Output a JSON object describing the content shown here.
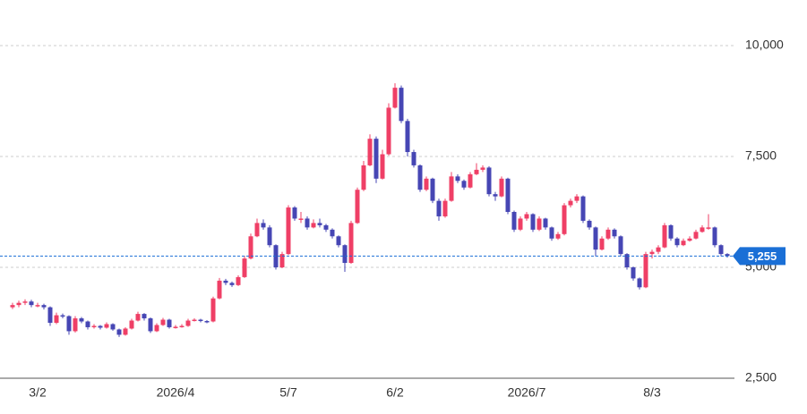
{
  "chart_data": {
    "type": "candlestick",
    "categories": [
      null,
      null,
      null,
      null,
      "3/2",
      null,
      null,
      null,
      null,
      null,
      null,
      null,
      null,
      null,
      null,
      null,
      null,
      null,
      null,
      null,
      null,
      null,
      null,
      null,
      null,
      null,
      "2026/4",
      null,
      null,
      null,
      null,
      null,
      null,
      null,
      null,
      null,
      null,
      null,
      null,
      null,
      null,
      null,
      null,
      null,
      "5/7",
      null,
      null,
      null,
      null,
      null,
      null,
      null,
      null,
      null,
      null,
      null,
      null,
      null,
      null,
      null,
      null,
      "6/2",
      null,
      null,
      null,
      null,
      null,
      null,
      null,
      null,
      null,
      null,
      null,
      null,
      null,
      null,
      null,
      null,
      null,
      null,
      null,
      null,
      "2026/7",
      null,
      null,
      null,
      null,
      null,
      null,
      null,
      null,
      null,
      null,
      null,
      null,
      null,
      null,
      null,
      null,
      null,
      null,
      null,
      "8/3",
      null,
      null,
      null,
      null,
      null,
      null,
      null,
      null,
      null,
      null,
      null,
      null
    ],
    "open": [
      4100,
      4150,
      4200,
      4230,
      4150,
      4150,
      4100,
      3750,
      3920,
      3900,
      3560,
      3850,
      3780,
      3650,
      3680,
      3640,
      3720,
      3600,
      3480,
      3620,
      3800,
      3950,
      3850,
      3560,
      3700,
      3820,
      3650,
      3660,
      3680,
      3800,
      3820,
      3790,
      3780,
      4300,
      4700,
      4650,
      4600,
      4780,
      5200,
      5700,
      6000,
      5900,
      5500,
      5000,
      5300,
      6350,
      6100,
      6100,
      5900,
      6000,
      5950,
      5850,
      5700,
      5500,
      5100,
      6000,
      6750,
      7300,
      7900,
      7000,
      7550,
      8600,
      9050,
      8300,
      7600,
      7300,
      6750,
      7000,
      6500,
      6150,
      6500,
      7050,
      6950,
      6800,
      7100,
      7200,
      7250,
      6650,
      6600,
      7000,
      6250,
      5850,
      6100,
      6200,
      5850,
      6100,
      5900,
      5650,
      5750,
      6400,
      6500,
      6600,
      6050,
      5900,
      5400,
      5650,
      5850,
      5700,
      5300,
      5000,
      4750,
      4550,
      5300,
      5350,
      5450,
      5950,
      5650,
      5500,
      5600,
      5650,
      5800,
      5900,
      5900,
      5500,
      5300
    ],
    "high": [
      4200,
      4250,
      4280,
      4270,
      4200,
      4180,
      4120,
      3980,
      3960,
      3920,
      3900,
      3880,
      3800,
      3720,
      3700,
      3760,
      3740,
      3620,
      3650,
      3840,
      4000,
      3970,
      3870,
      3740,
      3860,
      3840,
      3700,
      3720,
      3840,
      3850,
      3840,
      3810,
      4340,
      4760,
      4740,
      4680,
      4820,
      5260,
      5760,
      6100,
      6080,
      5950,
      5520,
      5350,
      6400,
      6380,
      6250,
      6150,
      6080,
      6100,
      5980,
      5880,
      5720,
      5520,
      6050,
      6800,
      7400,
      8000,
      7950,
      7650,
      8700,
      9150,
      9100,
      8350,
      7650,
      7320,
      7050,
      7020,
      6550,
      6550,
      7150,
      7100,
      6980,
      7150,
      7350,
      7300,
      7280,
      6700,
      7050,
      7020,
      6280,
      6150,
      6250,
      6220,
      6150,
      6120,
      5920,
      5800,
      6450,
      6550,
      6650,
      6620,
      6080,
      5920,
      5700,
      5900,
      5880,
      5720,
      5320,
      5020,
      4770,
      5350,
      5400,
      5500,
      6000,
      5970,
      5680,
      5650,
      5700,
      5850,
      5950,
      6200,
      5920,
      5520,
      5320
    ],
    "low": [
      4060,
      4100,
      4150,
      4100,
      4100,
      4050,
      3680,
      3720,
      3850,
      3480,
      3530,
      3740,
      3600,
      3620,
      3600,
      3620,
      3570,
      3430,
      3460,
      3600,
      3780,
      3800,
      3520,
      3540,
      3680,
      3620,
      3620,
      3640,
      3660,
      3780,
      3760,
      3740,
      3760,
      4280,
      4600,
      4560,
      4580,
      4760,
      5180,
      5680,
      5850,
      5450,
      4950,
      4980,
      5280,
      6050,
      6000,
      5850,
      5880,
      5900,
      5800,
      5650,
      5450,
      4900,
      5080,
      5980,
      6720,
      7280,
      6900,
      6980,
      7520,
      8580,
      8250,
      7500,
      7250,
      6700,
      6720,
      6450,
      6050,
      6120,
      6480,
      6900,
      6750,
      6780,
      7080,
      7150,
      6600,
      6500,
      6580,
      6200,
      5800,
      5820,
      6050,
      5800,
      5820,
      5850,
      5600,
      5620,
      5720,
      6350,
      6450,
      6000,
      5850,
      5250,
      5380,
      5620,
      5650,
      5250,
      4950,
      4700,
      4500,
      4530,
      5200,
      5300,
      5430,
      5600,
      5450,
      5480,
      5580,
      5630,
      5780,
      5850,
      5450,
      5250,
      5220
    ],
    "close": [
      4150,
      4200,
      4230,
      4150,
      4150,
      4100,
      3750,
      3920,
      3900,
      3560,
      3850,
      3780,
      3650,
      3680,
      3640,
      3720,
      3600,
      3480,
      3620,
      3800,
      3950,
      3850,
      3560,
      3700,
      3820,
      3650,
      3660,
      3680,
      3800,
      3820,
      3790,
      3780,
      4300,
      4700,
      4650,
      4600,
      4780,
      5200,
      5700,
      6000,
      5900,
      5500,
      5000,
      5300,
      6350,
      6100,
      6100,
      5900,
      6000,
      5950,
      5850,
      5700,
      5500,
      5100,
      6000,
      6750,
      7300,
      7900,
      7000,
      7550,
      8600,
      9050,
      8300,
      7600,
      7300,
      6750,
      7000,
      6500,
      6150,
      6500,
      7050,
      6950,
      6800,
      7100,
      7200,
      7250,
      6650,
      6600,
      7000,
      6250,
      5850,
      6100,
      6200,
      5850,
      6100,
      5900,
      5650,
      5750,
      6400,
      6500,
      6600,
      6050,
      5900,
      5400,
      5650,
      5850,
      5700,
      5300,
      5000,
      4750,
      4550,
      5300,
      5350,
      5450,
      5950,
      5650,
      5500,
      5600,
      5650,
      5800,
      5900,
      5900,
      5500,
      5300,
      5255
    ],
    "up_color": "#ef3f66",
    "down_color": "#4646b4",
    "last_price": {
      "value": 5255,
      "label": "5,255"
    },
    "last_price_color": "#1a6fd6",
    "ylim": [
      2500,
      10625
    ],
    "yticks": [
      {
        "value": 2500,
        "label": "2,500"
      },
      {
        "value": 5000,
        "label": "5,000"
      },
      {
        "value": 7500,
        "label": "7,500"
      },
      {
        "value": 10000,
        "label": "10,000"
      }
    ],
    "grid": true
  }
}
